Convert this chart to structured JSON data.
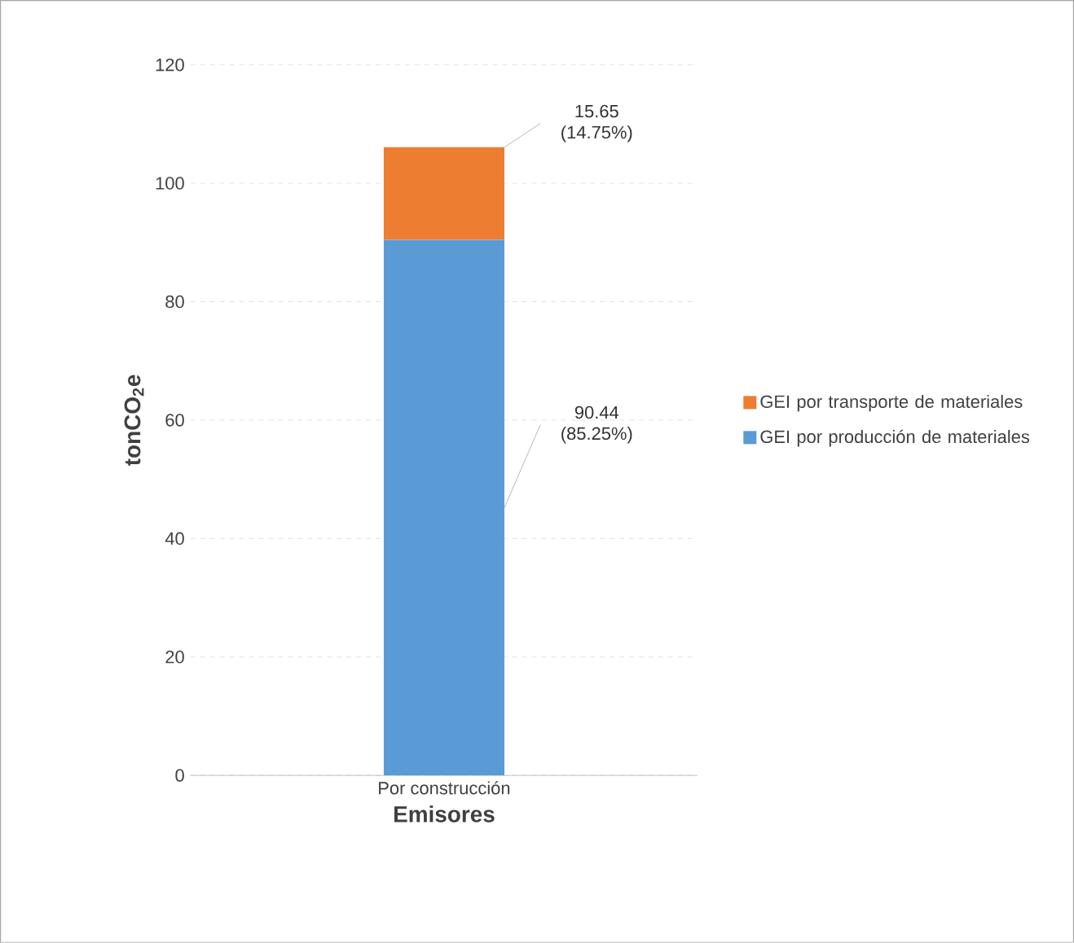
{
  "chart_data": {
    "type": "bar",
    "stacked": true,
    "xlabel": "Emisores",
    "ylabel": "tonCO$_{2}$e",
    "categories": [
      "Por construcción"
    ],
    "series": [
      {
        "name": "GEI por producción de materiales",
        "color": "#5b9bd5",
        "values": [
          90.44
        ],
        "value_labels": [
          "90.44 (85.25%)"
        ]
      },
      {
        "name": "GEI por transporte de materiales",
        "color": "#ed7d31",
        "values": [
          15.65
        ],
        "value_labels": [
          "15.65 (14.75%)"
        ]
      }
    ],
    "ylim": [
      0,
      120
    ],
    "yticks": [
      0,
      20,
      40,
      60,
      80,
      100,
      120
    ],
    "grid": "y",
    "legend": "right"
  }
}
